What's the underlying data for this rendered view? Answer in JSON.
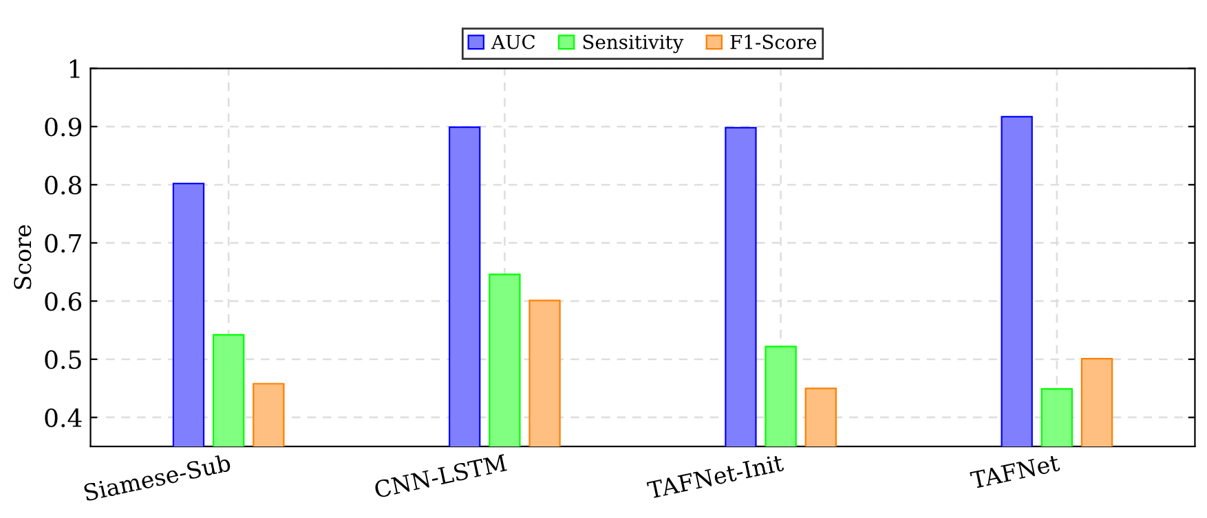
{
  "chart_data": {
    "type": "bar",
    "ylabel": "Score",
    "categories": [
      "Siamese-Sub",
      "CNN-LSTM",
      "TAFNet-Init",
      "TAFNet"
    ],
    "series": [
      {
        "name": "AUC",
        "color": "#8080ff",
        "values": [
          0.802,
          0.899,
          0.898,
          0.917
        ]
      },
      {
        "name": "Sensitivity",
        "color": "#80ff80",
        "values": [
          0.542,
          0.646,
          0.522,
          0.449
        ]
      },
      {
        "name": "F1-Score",
        "color": "#ffbf80",
        "values": [
          0.458,
          0.601,
          0.45,
          0.501
        ]
      }
    ],
    "ylim": [
      0.35,
      1
    ],
    "yticks": [
      0.4,
      0.5,
      0.6,
      0.7,
      0.8,
      0.9,
      1
    ],
    "grid": true,
    "legend": "top"
  }
}
